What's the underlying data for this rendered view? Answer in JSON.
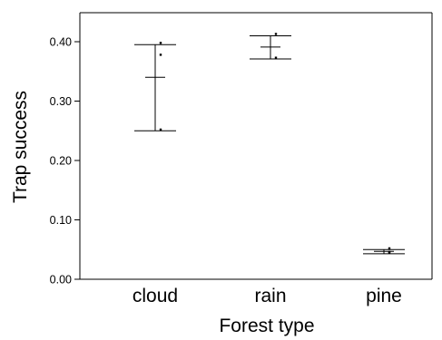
{
  "chart_data": {
    "type": "scatter",
    "title": "",
    "xlabel": "Forest type",
    "ylabel": "Trap success",
    "categories": [
      "cloud",
      "rain",
      "pine"
    ],
    "ylim": [
      0,
      0.45
    ],
    "yticks": [
      0.0,
      0.1,
      0.2,
      0.3,
      0.4
    ],
    "ytick_labels": [
      "0.00",
      "0.10",
      "0.20",
      "0.30",
      "0.40"
    ],
    "grid": false,
    "legend": "none",
    "points": [
      {
        "category": "cloud",
        "values": [
          0.398,
          0.378,
          0.252
        ]
      },
      {
        "category": "rain",
        "values": [
          0.413,
          0.373
        ]
      },
      {
        "category": "pine",
        "values": [
          0.052,
          0.046,
          0.045
        ]
      }
    ],
    "summary": [
      {
        "category": "cloud",
        "mean": 0.34,
        "lower": 0.25,
        "upper": 0.395
      },
      {
        "category": "rain",
        "mean": 0.391,
        "lower": 0.371,
        "upper": 0.41
      },
      {
        "category": "pine",
        "mean": 0.047,
        "lower": 0.043,
        "upper": 0.05
      }
    ],
    "colors": {
      "axis": "#000000",
      "marks": "#000000",
      "background": "#ffffff"
    }
  }
}
